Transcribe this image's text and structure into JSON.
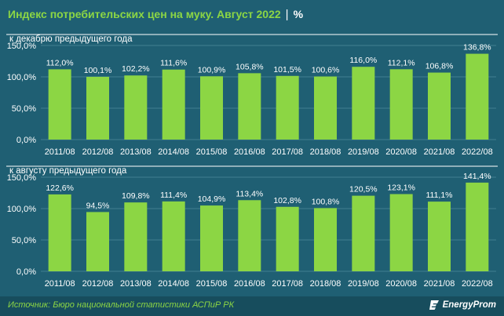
{
  "header": {
    "title": "Индекс потребительских цен на муку. Август 2022",
    "separator": "|",
    "unit": "%"
  },
  "colors": {
    "background": "#1f5f73",
    "bar": "#8cd644",
    "title": "#8cd644",
    "text": "#ffffff",
    "grid": "#4d8a9b"
  },
  "footer": {
    "source": "Источник: Бюро национальной статистики АСПиР РК",
    "brand": "EnergyProm",
    "brand_icon": "energyprom-logo-icon"
  },
  "chart_data": [
    {
      "type": "bar",
      "title": "к декабрю предыдущего года",
      "categories": [
        "2011/08",
        "2012/08",
        "2013/08",
        "2014/08",
        "2015/08",
        "2016/08",
        "2017/08",
        "2018/08",
        "2019/08",
        "2020/08",
        "2021/08",
        "2022/08"
      ],
      "values": [
        112.0,
        100.1,
        102.2,
        111.6,
        100.9,
        105.8,
        101.5,
        100.6,
        116.0,
        112.1,
        106.8,
        136.8
      ],
      "value_labels": [
        "112,0%",
        "100,1%",
        "102,2%",
        "111,6%",
        "100,9%",
        "105,8%",
        "101,5%",
        "100,6%",
        "116,0%",
        "112,1%",
        "106,8%",
        "136,8%"
      ],
      "yticks": [
        "0,0%",
        "50,0%",
        "100,0%",
        "150,0%"
      ],
      "ytick_values": [
        0,
        50,
        100,
        150
      ],
      "ylim": [
        0,
        150
      ],
      "grid": true
    },
    {
      "type": "bar",
      "title": "к августу предыдущего года",
      "categories": [
        "2011/08",
        "2012/08",
        "2013/08",
        "2014/08",
        "2015/08",
        "2016/08",
        "2017/08",
        "2018/08",
        "2019/08",
        "2020/08",
        "2021/08",
        "2022/08"
      ],
      "values": [
        122.6,
        94.5,
        109.8,
        111.4,
        104.9,
        113.4,
        102.8,
        100.8,
        120.5,
        123.1,
        111.1,
        141.4
      ],
      "value_labels": [
        "122,6%",
        "94,5%",
        "109,8%",
        "111,4%",
        "104,9%",
        "113,4%",
        "102,8%",
        "100,8%",
        "120,5%",
        "123,1%",
        "111,1%",
        "141,4%"
      ],
      "yticks": [
        "0,0%",
        "50,0%",
        "100,0%",
        "150,0%"
      ],
      "ytick_values": [
        0,
        50,
        100,
        150
      ],
      "ylim": [
        0,
        150
      ],
      "grid": true
    }
  ]
}
